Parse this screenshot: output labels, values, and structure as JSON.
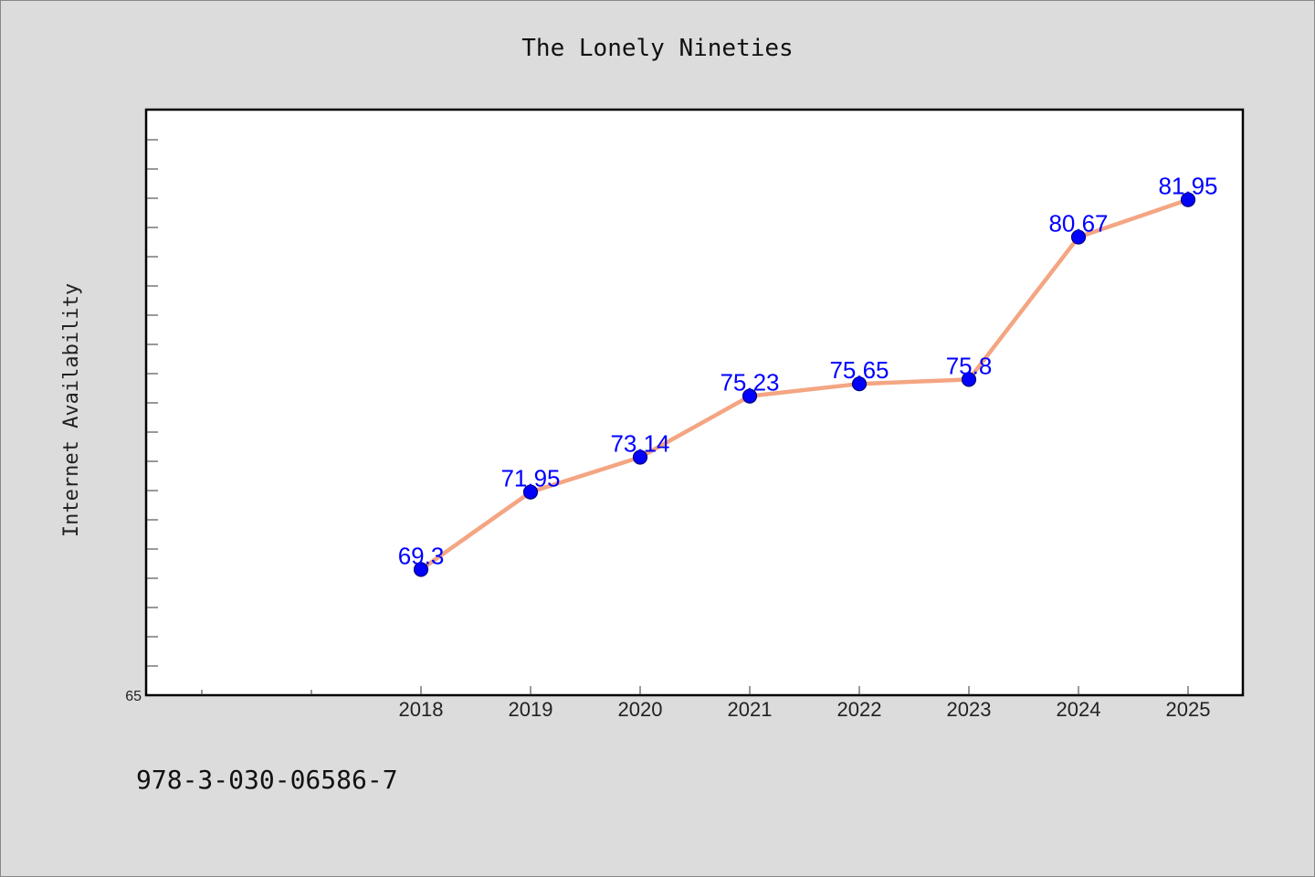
{
  "chart_data": {
    "type": "line",
    "title": "The Lonely Nineties",
    "xlabel": "",
    "ylabel": "Internet Availability",
    "x": [
      "2018",
      "2019",
      "2020",
      "2021",
      "2022",
      "2023",
      "2024",
      "2025"
    ],
    "series": [
      {
        "values": [
          69.3,
          71.95,
          73.14,
          75.23,
          75.65,
          75.8,
          80.67,
          81.95
        ],
        "data_labels": [
          "69.3",
          "71.95",
          "73.14",
          "75.23",
          "75.65",
          "75.8",
          "80.67",
          "81.95"
        ]
      }
    ],
    "ylim": [
      65,
      85
    ],
    "xlim": [
      2015.5,
      2025.5
    ],
    "ytick_labels": [
      {
        "value": 65,
        "label": "65"
      }
    ],
    "y_minor_tick_step": 1,
    "x_minor_ticks": [
      2016,
      2017
    ],
    "grid": false,
    "legend": "none",
    "colors": {
      "line": "#f4a582",
      "marker": "#0000ff",
      "label": "#0000ff",
      "background": "#dcdcdc",
      "plot_background": "#ffffff"
    }
  },
  "footer": {
    "code": "978-3-030-06586-7"
  }
}
